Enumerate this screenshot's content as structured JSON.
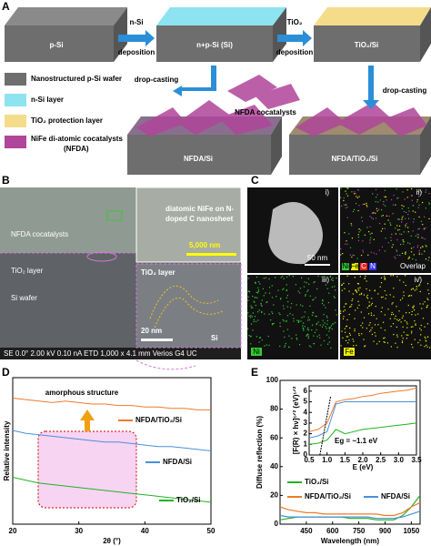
{
  "panels": [
    "A",
    "B",
    "C",
    "D",
    "E"
  ],
  "schematic": {
    "wafer_1": "p-Si",
    "step_1": [
      "n-Si",
      "deposition"
    ],
    "wafer_2": "n+p-Si (Si)",
    "step_2": [
      "TiO₂",
      "deposition"
    ],
    "wafer_3": "TiO₂/Si",
    "drop_casting": [
      "drop-casting",
      "drop-casting"
    ],
    "cocatalyst": "NFDA cocatalysts",
    "wafer_4": "NFDA/Si",
    "wafer_5": "NFDA/TiO₂/Si",
    "legend": [
      "Nanostructured p-Si wafer",
      "n-Si layer",
      "TiO₂ protection layer",
      "NiFe di-atomic cocatalysts",
      "(NFDA)"
    ]
  },
  "sem": {
    "layers": [
      "NFDA cocatalysts",
      "TiO₂ layer",
      "Si wafer"
    ],
    "inset_1": [
      "diatomic NiFe on N-",
      "doped C nanosheet"
    ],
    "scale_1": "5,000 nm",
    "inset_2": [
      "TiO₂ layer",
      "Si"
    ],
    "scale_2": "20 nm",
    "info": "SE   0.0°  2.00 kV  0.10 nA  ETD   1,000 x   4.1 mm        Verios G4 UC"
  },
  "eds": {
    "tiles": [
      "i)",
      "ii)",
      "iii)",
      "iv)"
    ],
    "scale": "50 nm",
    "elements": [
      "Ni",
      "Fe",
      "C",
      "N"
    ],
    "overlap": "Overlap",
    "tile_3": "Ni",
    "tile_4": "Fe"
  },
  "chart_data": [
    {
      "type": "line",
      "title": "amorphous structure",
      "xlabel": "2θ (°)",
      "ylabel": "Relative intensity",
      "x": [
        20,
        22,
        24,
        26,
        28,
        30,
        32,
        34,
        36,
        38,
        40,
        42,
        44,
        46,
        48,
        50
      ],
      "xlim": [
        20,
        50
      ],
      "xticks": [
        20,
        30,
        40,
        50
      ],
      "ylim": [
        0,
        1
      ],
      "series": [
        {
          "name": "NFDA/TiO₂/Si",
          "color": "#f07a2a",
          "values": [
            0.86,
            0.85,
            0.84,
            0.83,
            0.84,
            0.83,
            0.82,
            0.82,
            0.81,
            0.81,
            0.8,
            0.8,
            0.79,
            0.79,
            0.78,
            0.78
          ]
        },
        {
          "name": "NFDA/Si",
          "color": "#4a90d9",
          "values": [
            0.64,
            0.62,
            0.61,
            0.6,
            0.59,
            0.58,
            0.57,
            0.56,
            0.56,
            0.55,
            0.54,
            0.53,
            0.53,
            0.52,
            0.51,
            0.5
          ]
        },
        {
          "name": "TiO₂/Si",
          "color": "#22b322",
          "values": [
            0.32,
            0.3,
            0.28,
            0.27,
            0.26,
            0.25,
            0.24,
            0.23,
            0.22,
            0.21,
            0.2,
            0.19,
            0.18,
            0.17,
            0.16,
            0.15
          ]
        }
      ]
    },
    {
      "type": "line",
      "xlabel": "Wavelength (nm)",
      "ylabel": "Diffuse reflection (%)",
      "x": [
        300,
        350,
        400,
        450,
        500,
        550,
        600,
        650,
        700,
        750,
        800,
        850,
        900,
        950,
        1000,
        1050,
        1100
      ],
      "xlim": [
        300,
        1100
      ],
      "xticks": [
        450,
        600,
        750,
        900,
        1050
      ],
      "ylim": [
        0,
        100
      ],
      "yticks": [
        0,
        20,
        40,
        60,
        80,
        100
      ],
      "series": [
        {
          "name": "TiO₂/Si",
          "color": "#22b322",
          "values": [
            3,
            4,
            5,
            5,
            5,
            5,
            5,
            5,
            4,
            4,
            4,
            3,
            3,
            3,
            6,
            12,
            20
          ]
        },
        {
          "name": "NFDA/TiO₂/Si",
          "color": "#f07a2a",
          "values": [
            12,
            10,
            9,
            8,
            8,
            7,
            7,
            7,
            7,
            7,
            7,
            7,
            6,
            6,
            8,
            12,
            15
          ]
        },
        {
          "name": "NFDA/Si",
          "color": "#4a90d9",
          "values": [
            6,
            5,
            5,
            5,
            5,
            5,
            5,
            5,
            5,
            5,
            5,
            4,
            4,
            4,
            5,
            7,
            9
          ]
        }
      ],
      "inset": {
        "xlabel": "E (eV)",
        "ylabel": "[F(R) × hν]¹ᐟ² (eV)¹ᐟ²",
        "annotation": "Eg = ~1.1 eV",
        "x": [
          0.5,
          0.75,
          1.0,
          1.25,
          1.5,
          1.75,
          2.0,
          2.25,
          2.5,
          2.75,
          3.0,
          3.25,
          3.5
        ],
        "xlim": [
          0.5,
          3.5
        ],
        "xticks": [
          0.5,
          {
            "value": 1,
            "label": "1.0"
          },
          1.5,
          {
            "value": 2,
            "label": "2.0"
          },
          2.5,
          {
            "value": 3,
            "label": "3.0"
          },
          3.5
        ],
        "ylim": [
          0,
          6.5
        ],
        "yticks": [
          0,
          1,
          2,
          3,
          4,
          5,
          6
        ],
        "series": [
          {
            "color": "#f07a2a",
            "values": [
              2.2,
              2.4,
              3.0,
              5.0,
              5.2,
              5.3,
              5.5,
              5.6,
              5.8,
              5.9,
              6.0,
              6.1,
              6.3
            ]
          },
          {
            "color": "#4a90d9",
            "values": [
              1.6,
              1.8,
              2.2,
              4.8,
              5.0,
              5.0,
              5.0,
              5.0,
              5.0,
              5.0,
              5.0,
              5.0,
              5.0
            ]
          },
          {
            "color": "#22b322",
            "values": [
              1.0,
              1.1,
              1.4,
              2.4,
              2.0,
              2.2,
              2.4,
              2.5,
              2.6,
              2.7,
              2.8,
              2.9,
              3.0
            ]
          }
        ]
      }
    }
  ]
}
